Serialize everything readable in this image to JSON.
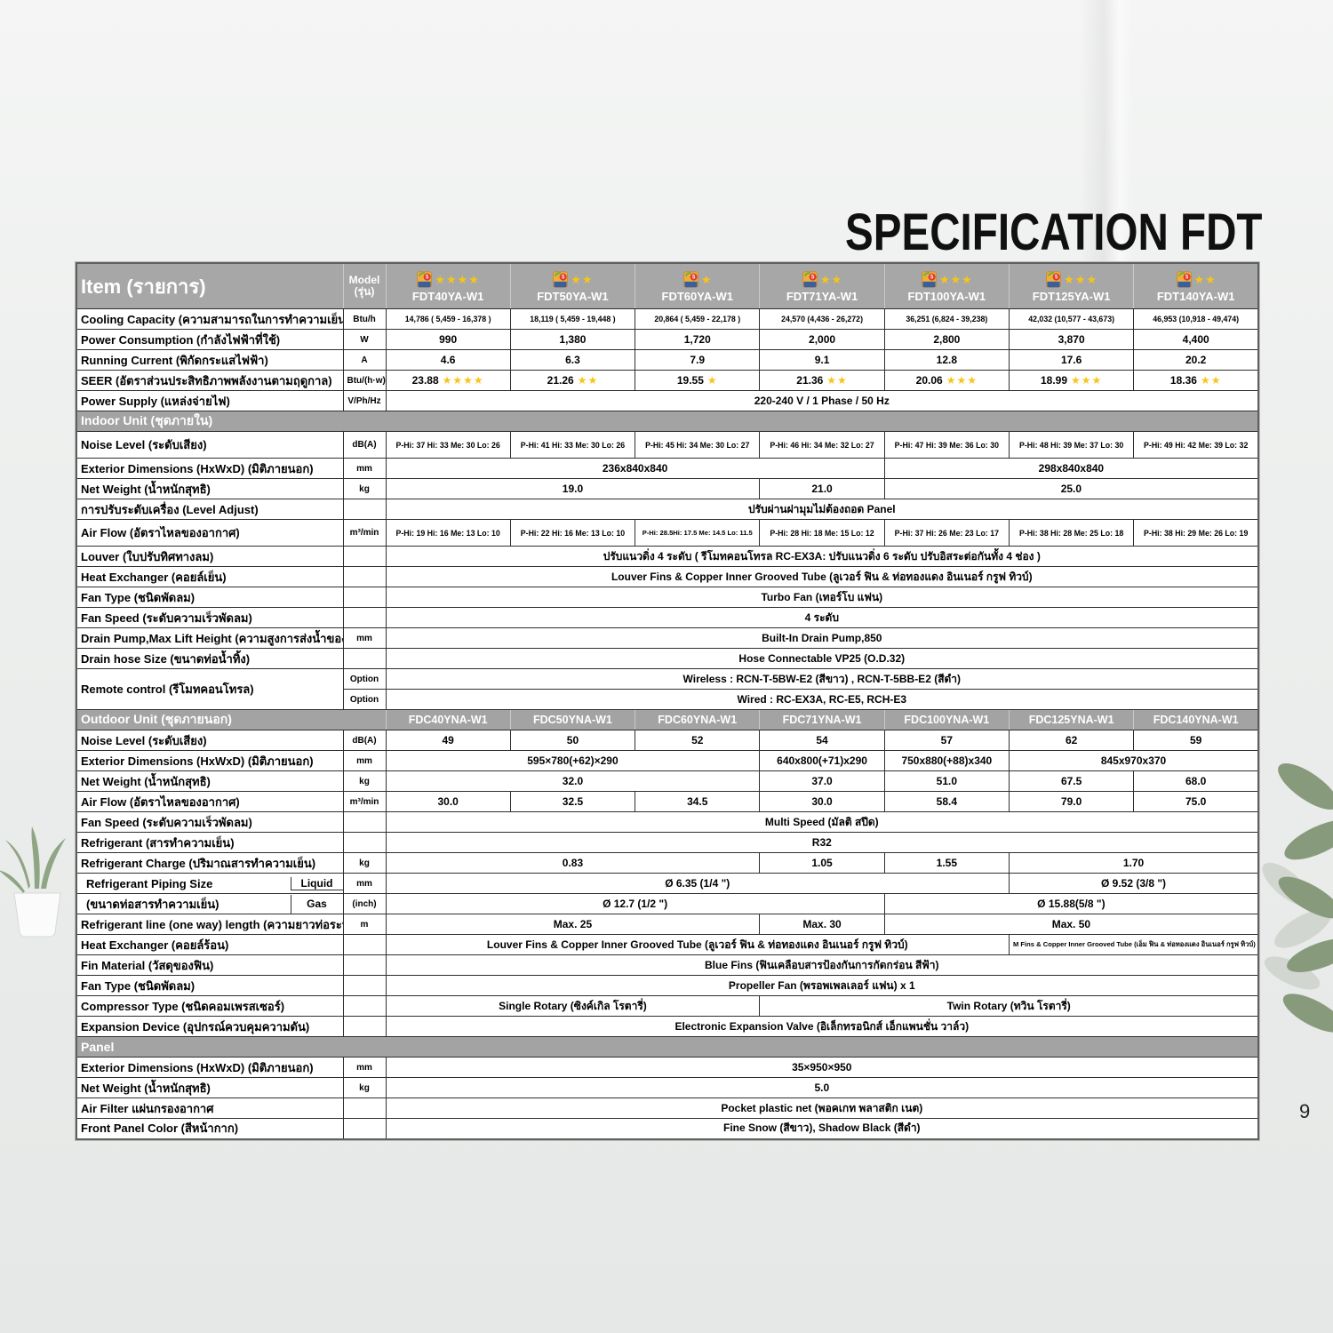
{
  "page": {
    "title": "SPECIFICATION FDT",
    "page_number": "9"
  },
  "table": {
    "header": {
      "item_label": "Item (รายการ)",
      "model_label": "Model (รุ่น)",
      "models": [
        {
          "name": "FDT40YA-W1",
          "stars": 4
        },
        {
          "name": "FDT50YA-W1",
          "stars": 2
        },
        {
          "name": "FDT60YA-W1",
          "stars": 1
        },
        {
          "name": "FDT71YA-W1",
          "stars": 2
        },
        {
          "name": "FDT100YA-W1",
          "stars": 3
        },
        {
          "name": "FDT125YA-W1",
          "stars": 3
        },
        {
          "name": "FDT140YA-W1",
          "stars": 2
        }
      ]
    },
    "rows": [
      {
        "t": "data",
        "label": "Cooling Capacity (ความสามารถในการทำความเย็น)",
        "unit": "Btu/h",
        "small": true,
        "cells": [
          {
            "v": "14,786 ( 5,459 - 16,378 )"
          },
          {
            "v": "18,119 ( 5,459 - 19,448 )"
          },
          {
            "v": "20,864 ( 5,459 - 22,178 )"
          },
          {
            "v": "24,570 (4,436 - 26,272)"
          },
          {
            "v": "36,251 (6,824 - 39,238)"
          },
          {
            "v": "42,032 (10,577 - 43,673)"
          },
          {
            "v": "46,953 (10,918 - 49,474)"
          }
        ]
      },
      {
        "t": "data",
        "label": "Power Consumption (กำลังไฟฟ้าที่ใช้)",
        "unit": "W",
        "cells": [
          {
            "v": "990"
          },
          {
            "v": "1,380"
          },
          {
            "v": "1,720"
          },
          {
            "v": "2,000"
          },
          {
            "v": "2,800"
          },
          {
            "v": "3,870"
          },
          {
            "v": "4,400"
          }
        ]
      },
      {
        "t": "data",
        "label": "Running Current (พิกัดกระแสไฟฟ้า)",
        "unit": "A",
        "cells": [
          {
            "v": "4.6"
          },
          {
            "v": "6.3"
          },
          {
            "v": "7.9"
          },
          {
            "v": "9.1"
          },
          {
            "v": "12.8"
          },
          {
            "v": "17.6"
          },
          {
            "v": "20.2"
          }
        ]
      },
      {
        "t": "data",
        "label": "SEER (อัตราส่วนประสิทธิภาพพลังงานตามฤดูกาล)",
        "unit": "Btu/(h·w)",
        "cells": [
          {
            "v": "23.88",
            "stars": 4
          },
          {
            "v": "21.26",
            "stars": 2
          },
          {
            "v": "19.55",
            "stars": 1
          },
          {
            "v": "21.36",
            "stars": 2
          },
          {
            "v": "20.06",
            "stars": 3
          },
          {
            "v": "18.99",
            "stars": 3
          },
          {
            "v": "18.36",
            "stars": 2
          }
        ]
      },
      {
        "t": "data",
        "label": "Power Supply (แหล่งจ่ายไฟ)",
        "unit": "V/Ph/Hz",
        "cells": [
          {
            "v": "220-240 V / 1 Phase / 50 Hz",
            "span": 7
          }
        ]
      },
      {
        "t": "section",
        "label": "Indoor Unit (ชุดภายใน)"
      },
      {
        "t": "data",
        "label": "Noise Level (ระดับเสียง)",
        "unit": "dB(A)",
        "tall": true,
        "small": true,
        "cells": [
          {
            "v": "P-Hi: 37 Hi: 33  Me: 30 Lo: 26"
          },
          {
            "v": "P-Hi: 41 Hi: 33  Me: 30 Lo: 26"
          },
          {
            "v": "P-Hi: 45 Hi: 34  Me: 30 Lo: 27"
          },
          {
            "v": "P-Hi: 46 Hi: 34  Me: 32 Lo: 27"
          },
          {
            "v": "P-Hi: 47 Hi: 39  Me: 36 Lo: 30"
          },
          {
            "v": "P-Hi: 48 Hi: 39  Me: 37 Lo: 30"
          },
          {
            "v": "P-Hi: 49 Hi: 42  Me: 39 Lo: 32"
          }
        ]
      },
      {
        "t": "data",
        "label": "Exterior Dimensions (HxWxD) (มิติภายนอก)",
        "unit": "mm",
        "cells": [
          {
            "v": "236x840x840",
            "span": 4
          },
          {
            "v": "298x840x840",
            "span": 3
          }
        ]
      },
      {
        "t": "data",
        "label": "Net Weight (น้ำหนักสุทธิ)",
        "unit": "kg",
        "cells": [
          {
            "v": "19.0",
            "span": 3
          },
          {
            "v": "21.0"
          },
          {
            "v": "25.0",
            "span": 3
          }
        ]
      },
      {
        "t": "data",
        "label": "การปรับระดับเครื่อง (Level Adjust)",
        "unit": "",
        "cells": [
          {
            "v": "ปรับผ่านฝามุมไม่ต้องถอด Panel",
            "span": 7
          }
        ]
      },
      {
        "t": "data",
        "label": "Air Flow (อัตราไหลของอากาศ)",
        "unit": "m³/min",
        "tall": true,
        "small": true,
        "cells": [
          {
            "v": "P-Hi: 19 Hi: 16 Me: 13 Lo: 10"
          },
          {
            "v": "P-Hi: 22 Hi: 16 Me: 13 Lo: 10"
          },
          {
            "v": "P-Hi: 28.5Hi: 17.5 Me: 14.5 Lo: 11.5",
            "xs": true
          },
          {
            "v": "P-Hi: 28 Hi: 18 Me: 15 Lo: 12"
          },
          {
            "v": "P-Hi: 37 Hi: 26  Me: 23 Lo: 17"
          },
          {
            "v": "P-Hi: 38 Hi: 28  Me: 25 Lo: 18"
          },
          {
            "v": "P-Hi: 38 Hi: 29  Me: 26 Lo: 19"
          }
        ]
      },
      {
        "t": "data",
        "label": "Louver (ใบปรับทิศทางลม)",
        "unit": "",
        "cells": [
          {
            "v": "ปรับแนวดิ่ง 4 ระดับ ( รีโมทคอนโทรล RC-EX3A: ปรับแนวดิ่ง 6 ระดับ ปรับอิสระต่อกันทั้ง 4 ช่อง )",
            "span": 7
          }
        ]
      },
      {
        "t": "data",
        "label": "Heat Exchanger (คอยล์เย็น)",
        "unit": "",
        "cells": [
          {
            "v": "Louver Fins & Copper Inner Grooved Tube (ลูเวอร์ ฟิน & ท่อทองแดง อินเนอร์ กรูฟ ทิวบ์)",
            "span": 7
          }
        ]
      },
      {
        "t": "data",
        "label": "Fan Type (ชนิดพัดลม)",
        "unit": "",
        "cells": [
          {
            "v": "Turbo Fan (เทอร์โบ แฟน)",
            "span": 7
          }
        ]
      },
      {
        "t": "data",
        "label": "Fan Speed (ระดับความเร็วพัดลม)",
        "unit": "",
        "cells": [
          {
            "v": "4 ระดับ",
            "span": 7
          }
        ]
      },
      {
        "t": "data",
        "label": "Drain Pump,Max Lift Height (ความสูงการส่งน้ำของปั๊ม)",
        "unit": "mm",
        "cells": [
          {
            "v": "Built-In Drain Pump,850",
            "span": 7
          }
        ]
      },
      {
        "t": "data",
        "label": "Drain hose Size (ขนาดท่อน้ำทิ้ง)",
        "unit": "",
        "cells": [
          {
            "v": "Hose Connectable VP25 (O.D.32)",
            "span": 7
          }
        ]
      },
      {
        "t": "data",
        "label": "Remote control (รีโมทคอนโทรล)",
        "labelRowspan": 2,
        "unit": "Option",
        "cells": [
          {
            "v": "Wireless : RCN-T-5BW-E2 (สีขาว) , RCN-T-5BB-E2 (สีดำ)",
            "span": 7
          }
        ]
      },
      {
        "t": "data",
        "noLabel": true,
        "unit": "Option",
        "cells": [
          {
            "v": "Wired : RC-EX3A, RC-E5, RCH-E3",
            "span": 7
          }
        ]
      },
      {
        "t": "section",
        "label": "Outdoor Unit (ชุดภายนอก)",
        "models": [
          "FDC40YNA-W1",
          "FDC50YNA-W1",
          "FDC60YNA-W1",
          "FDC71YNA-W1",
          "FDC100YNA-W1",
          "FDC125YNA-W1",
          "FDC140YNA-W1"
        ]
      },
      {
        "t": "data",
        "label": "Noise Level (ระดับเสียง)",
        "unit": "dB(A)",
        "cells": [
          {
            "v": "49"
          },
          {
            "v": "50"
          },
          {
            "v": "52"
          },
          {
            "v": "54"
          },
          {
            "v": "57"
          },
          {
            "v": "62"
          },
          {
            "v": "59"
          }
        ]
      },
      {
        "t": "data",
        "label": "Exterior Dimensions (HxWxD) (มิติภายนอก)",
        "unit": "mm",
        "cells": [
          {
            "v": "595×780(+62)×290",
            "span": 3
          },
          {
            "v": "640x800(+71)x290"
          },
          {
            "v": "750x880(+88)x340"
          },
          {
            "v": "845x970x370",
            "span": 2
          }
        ]
      },
      {
        "t": "data",
        "label": "Net Weight (น้ำหนักสุทธิ)",
        "unit": "kg",
        "cells": [
          {
            "v": "32.0",
            "span": 3
          },
          {
            "v": "37.0"
          },
          {
            "v": "51.0"
          },
          {
            "v": "67.5"
          },
          {
            "v": "68.0"
          }
        ]
      },
      {
        "t": "data",
        "label": "Air Flow (อัตราไหลของอากาศ)",
        "unit": "m³/min",
        "cells": [
          {
            "v": "30.0"
          },
          {
            "v": "32.5"
          },
          {
            "v": "34.5"
          },
          {
            "v": "30.0"
          },
          {
            "v": "58.4"
          },
          {
            "v": "79.0"
          },
          {
            "v": "75.0"
          }
        ]
      },
      {
        "t": "data",
        "label": "Fan Speed (ระดับความเร็วพัดลม)",
        "unit": "",
        "cells": [
          {
            "v": "Multi Speed (มัลติ สปีด)",
            "span": 7
          }
        ]
      },
      {
        "t": "data",
        "label": "Refrigerant (สารทำความเย็น)",
        "unit": "",
        "cells": [
          {
            "v": "R32",
            "span": 7
          }
        ]
      },
      {
        "t": "data",
        "label": "Refrigerant Charge (ปริมาณสารทำความเย็น)",
        "unit": "kg",
        "cells": [
          {
            "v": "0.83",
            "span": 3
          },
          {
            "v": "1.05"
          },
          {
            "v": "1.55"
          },
          {
            "v": "1.70",
            "span": 2
          }
        ]
      },
      {
        "t": "data",
        "label": "Refrigerant Piping Size",
        "sub": "Liquid",
        "subDivider": true,
        "unit": "mm",
        "cells": [
          {
            "v": "Ø 6.35 (1/4 \")",
            "span": 5
          },
          {
            "v": "Ø 9.52 (3/8 \")",
            "span": 2
          }
        ]
      },
      {
        "t": "data",
        "label": "(ขนาดท่อสารทำความเย็น)",
        "sub": "Gas",
        "unit": "(inch)",
        "cells": [
          {
            "v": "Ø 12.7 (1/2 \")",
            "span": 4
          },
          {
            "v": "Ø 15.88(5/8 \")",
            "span": 3
          }
        ]
      },
      {
        "t": "data",
        "label": "Refrigerant line (one way) length (ความยาวท่อระหว่างเครื่อง)",
        "unit": "m",
        "cells": [
          {
            "v": "Max. 25",
            "span": 3
          },
          {
            "v": "Max. 30"
          },
          {
            "v": "Max. 50",
            "span": 3
          }
        ]
      },
      {
        "t": "data",
        "label": "Heat Exchanger (คอยล์ร้อน)",
        "unit": "",
        "cells": [
          {
            "v": "Louver Fins & Copper Inner Grooved Tube (ลูเวอร์ ฟิน & ท่อทองแดง อินเนอร์ กรูฟ ทิวบ์)",
            "span": 5
          },
          {
            "v": "M Fins & Copper Inner Grooved Tube  (เอ็ม ฟิน & ท่อทองแดง อินเนอร์ กรูฟ ทิวบ์)",
            "span": 2,
            "xs": true
          }
        ]
      },
      {
        "t": "data",
        "label": "Fin Material (วัสดุของฟิน)",
        "unit": "",
        "cells": [
          {
            "v": "Blue Fins (ฟินเคลือบสารป้องกันการกัดกร่อน สีฟ้า)",
            "span": 7
          }
        ]
      },
      {
        "t": "data",
        "label": "Fan Type (ชนิดพัดลม)",
        "unit": "",
        "cells": [
          {
            "v": "Propeller Fan (พรอพเพลเลอร์ แฟน) x 1",
            "span": 7
          }
        ]
      },
      {
        "t": "data",
        "label": "Compressor Type (ชนิดคอมเพรสเซอร์)",
        "unit": "",
        "cells": [
          {
            "v": "Single Rotary (ซิงค์เกิล โรตารี่)",
            "span": 3
          },
          {
            "v": "Twin Rotary (ทวิน โรตารี่)",
            "span": 4
          }
        ]
      },
      {
        "t": "data",
        "label": "Expansion Device (อุปกรณ์ควบคุมความดัน)",
        "unit": "",
        "cells": [
          {
            "v": "Electronic Expansion Valve (อิเล็กทรอนิกส์ เอ็กแพนชั่น วาล์ว)",
            "span": 7
          }
        ]
      },
      {
        "t": "section",
        "label": "Panel"
      },
      {
        "t": "data",
        "label": "Exterior Dimensions (HxWxD) (มิติภายนอก)",
        "unit": "mm",
        "cells": [
          {
            "v": "35×950×950",
            "span": 7
          }
        ]
      },
      {
        "t": "data",
        "label": "Net Weight (น้ำหนักสุทธิ)",
        "unit": "kg",
        "cells": [
          {
            "v": "5.0",
            "span": 7
          }
        ]
      },
      {
        "t": "data",
        "label": "Air Filter แผ่นกรองอากาศ",
        "unit": "",
        "cells": [
          {
            "v": "Pocket plastic net (พอคเกท พลาสติก เนต)",
            "span": 7
          }
        ]
      },
      {
        "t": "data",
        "label": "Front Panel Color (สีหน้ากาก)",
        "unit": "",
        "cells": [
          {
            "v": "Fine Snow (สีขาว), Shadow Black (สีดำ)",
            "span": 7
          }
        ]
      }
    ]
  },
  "colors": {
    "accent_star": "#f6c51a",
    "header_gray": "#a7a7a7",
    "section_gray": "#a3a3a3"
  }
}
